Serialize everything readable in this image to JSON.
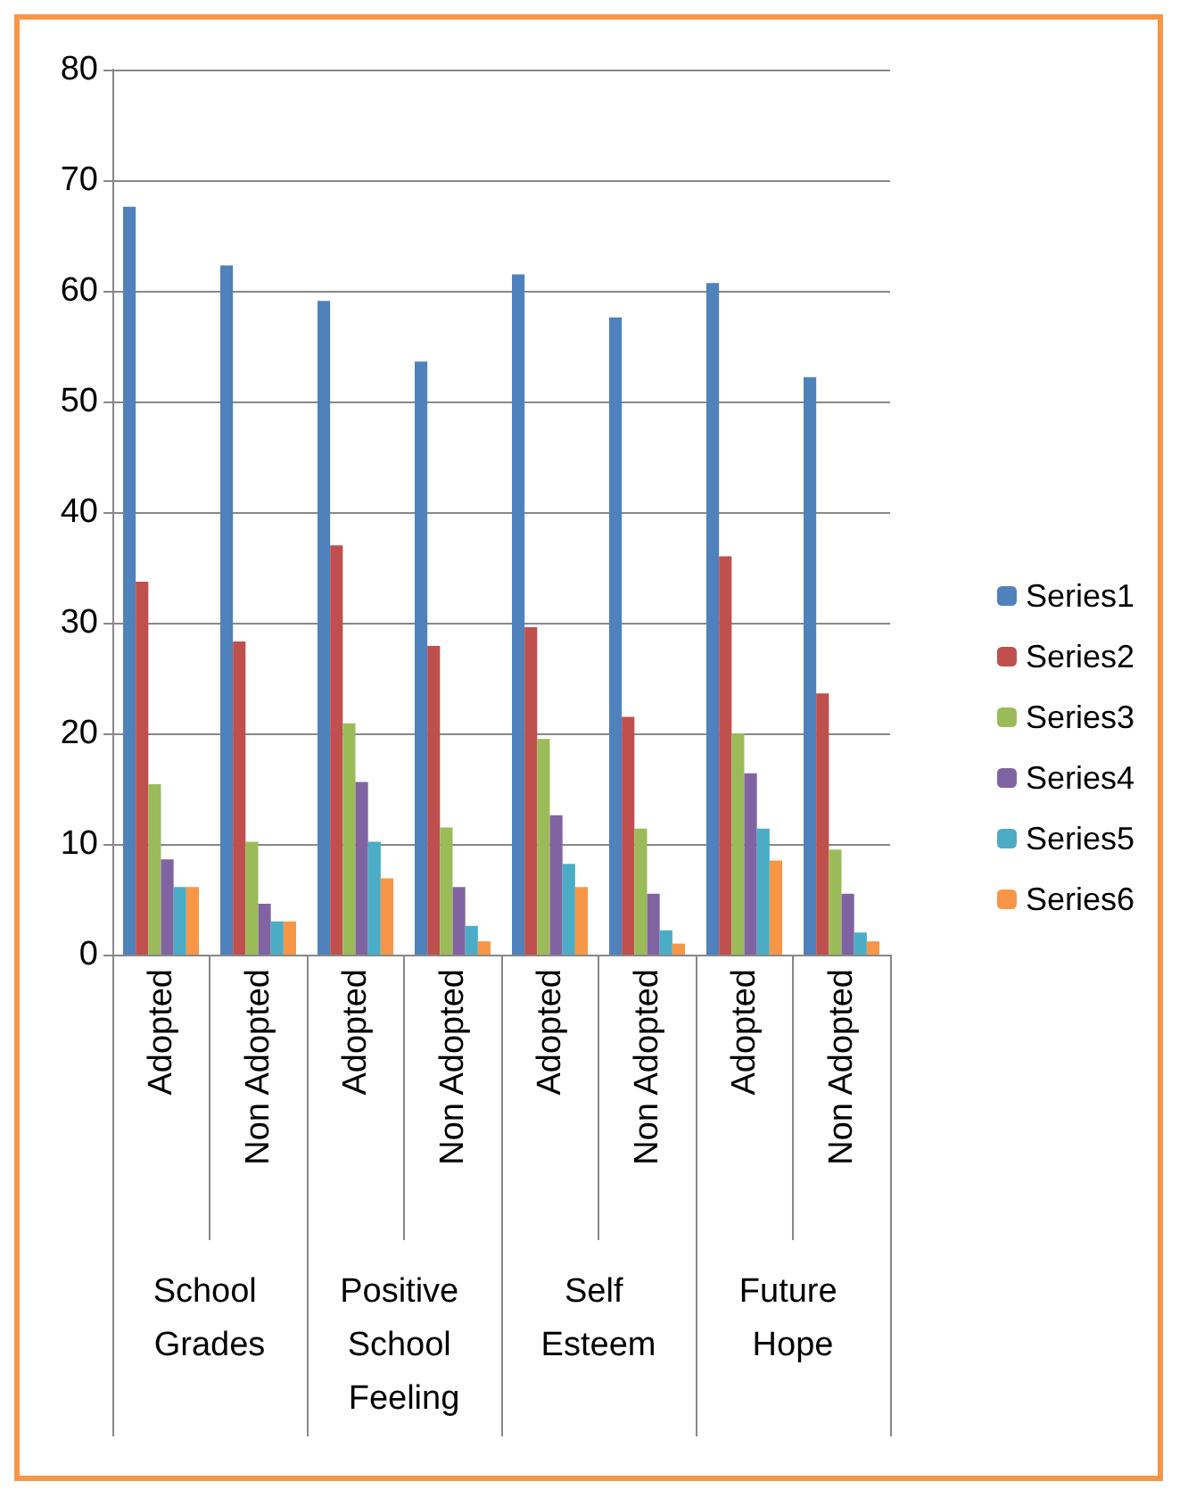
{
  "chart_data": {
    "type": "bar",
    "categories": [
      "Adopted",
      "Non Adopted",
      "Adopted",
      "Non Adopted",
      "Adopted",
      "Non Adopted",
      "Adopted",
      "Non Adopted"
    ],
    "annotations": [
      "School Grades",
      "Positive School Feeling",
      "Self Esteem",
      "Future Hope"
    ],
    "series": [
      {
        "name": "Series1",
        "color": "#4f81bd",
        "values": [
          67.6,
          62.3,
          59.1,
          53.6,
          61.5,
          57.6,
          60.7,
          52.2
        ]
      },
      {
        "name": "Series2",
        "color": "#c0504d",
        "values": [
          33.7,
          28.3,
          37.0,
          27.9,
          29.6,
          21.5,
          36.0,
          23.6
        ]
      },
      {
        "name": "Series3",
        "color": "#9bbb59",
        "values": [
          15.4,
          10.2,
          20.9,
          11.5,
          19.5,
          11.4,
          20.0,
          9.5
        ]
      },
      {
        "name": "Series4",
        "color": "#8064a2",
        "values": [
          8.6,
          4.6,
          15.6,
          6.1,
          12.6,
          5.5,
          16.4,
          5.5
        ]
      },
      {
        "name": "Series5",
        "color": "#4bacc6",
        "values": [
          6.1,
          3.0,
          10.2,
          2.6,
          8.2,
          2.2,
          11.4,
          2.0
        ]
      },
      {
        "name": "Series6",
        "color": "#f79646",
        "values": [
          6.1,
          3.0,
          6.9,
          1.2,
          6.1,
          1.0,
          8.5,
          1.2
        ]
      }
    ],
    "ylim": [
      0,
      80
    ],
    "yticks": [
      0,
      10,
      20,
      30,
      40,
      50,
      60,
      70,
      80
    ],
    "grid": "y",
    "legend": "right"
  }
}
